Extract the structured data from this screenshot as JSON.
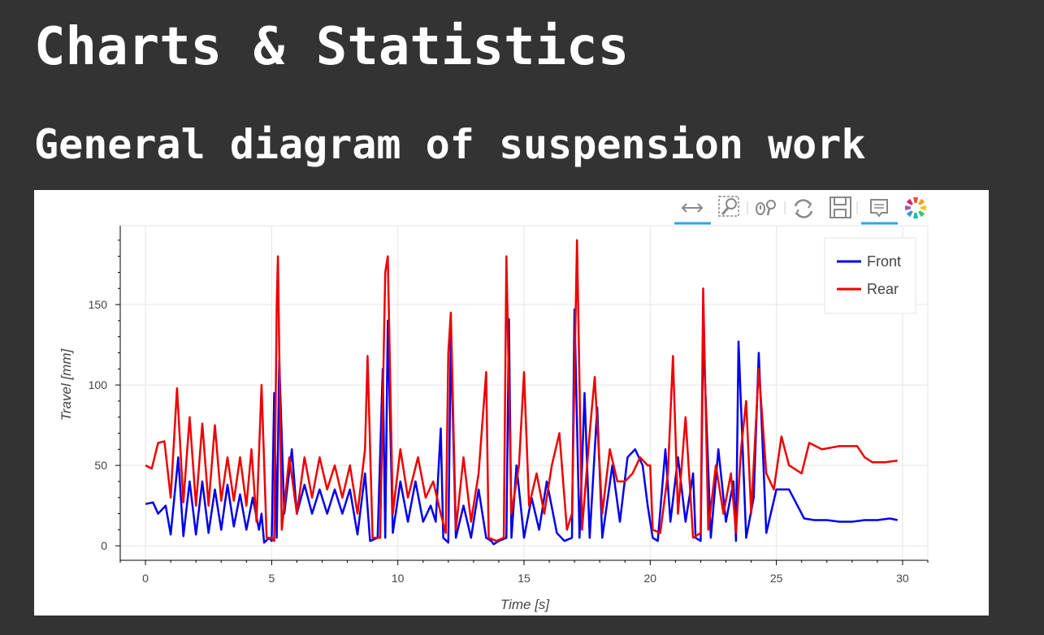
{
  "page": {
    "title": "Charts & Statistics",
    "section_title": "General diagram of suspension work"
  },
  "toolbar": {
    "tools": [
      {
        "name": "pan-tool",
        "icon": "horizontal-pan-arrows-icon",
        "active": true
      },
      {
        "name": "box-zoom-tool",
        "icon": "box-zoom-magnifier-icon",
        "active": false
      },
      {
        "name": "wheel-zoom-tool",
        "icon": "wheel-zoom-icon",
        "active": false
      },
      {
        "name": "reset-tool",
        "icon": "reset-icon",
        "active": false
      },
      {
        "name": "save-tool",
        "icon": "save-icon",
        "active": false
      },
      {
        "name": "hover-tool",
        "icon": "hover-tooltip-icon",
        "active": true
      },
      {
        "name": "bokeh-logo",
        "icon": "bokeh-logo-icon",
        "active": false
      }
    ],
    "active_color": "#26aae1"
  },
  "chart_data": {
    "type": "line",
    "xlabel": "Time [s]",
    "ylabel": "Travel [mm]",
    "xlim": [
      -1,
      31
    ],
    "ylim": [
      -9,
      199
    ],
    "xticks": [
      0,
      5,
      10,
      15,
      20,
      25,
      30
    ],
    "yticks": [
      0,
      50,
      100,
      150
    ],
    "grid": true,
    "legend_position": "top-right",
    "series": [
      {
        "name": "Front",
        "color": "#0000ee",
        "points": [
          [
            0,
            26
          ],
          [
            0.3,
            27
          ],
          [
            0.5,
            20
          ],
          [
            0.8,
            25
          ],
          [
            1.0,
            7
          ],
          [
            1.3,
            55
          ],
          [
            1.5,
            6
          ],
          [
            1.75,
            40
          ],
          [
            2.0,
            7
          ],
          [
            2.25,
            40
          ],
          [
            2.5,
            8
          ],
          [
            2.75,
            35
          ],
          [
            3.0,
            10
          ],
          [
            3.25,
            38
          ],
          [
            3.5,
            12
          ],
          [
            3.75,
            32
          ],
          [
            4.0,
            10
          ],
          [
            4.25,
            30
          ],
          [
            4.5,
            10
          ],
          [
            4.6,
            20
          ],
          [
            4.7,
            2
          ],
          [
            4.9,
            5
          ],
          [
            5.0,
            3
          ],
          [
            5.1,
            95
          ],
          [
            5.2,
            5
          ],
          [
            5.3,
            115
          ],
          [
            5.5,
            20
          ],
          [
            5.8,
            60
          ],
          [
            6.0,
            20
          ],
          [
            6.3,
            38
          ],
          [
            6.6,
            20
          ],
          [
            6.9,
            35
          ],
          [
            7.2,
            20
          ],
          [
            7.5,
            35
          ],
          [
            7.8,
            20
          ],
          [
            8.1,
            35
          ],
          [
            8.4,
            7
          ],
          [
            8.7,
            45
          ],
          [
            8.9,
            3
          ],
          [
            9.2,
            5
          ],
          [
            9.4,
            110
          ],
          [
            9.5,
            5
          ],
          [
            9.6,
            140
          ],
          [
            9.8,
            8
          ],
          [
            10.1,
            40
          ],
          [
            10.4,
            15
          ],
          [
            10.7,
            40
          ],
          [
            11.0,
            15
          ],
          [
            11.3,
            25
          ],
          [
            11.5,
            15
          ],
          [
            11.7,
            73
          ],
          [
            11.8,
            5
          ],
          [
            12.0,
            2
          ],
          [
            12.1,
            130
          ],
          [
            12.3,
            5
          ],
          [
            12.6,
            25
          ],
          [
            12.9,
            5
          ],
          [
            13.2,
            35
          ],
          [
            13.5,
            5
          ],
          [
            13.7,
            3
          ],
          [
            13.8,
            1
          ],
          [
            14.0,
            3
          ],
          [
            14.3,
            5
          ],
          [
            14.4,
            141
          ],
          [
            14.5,
            5
          ],
          [
            14.7,
            50
          ],
          [
            15.0,
            5
          ],
          [
            15.3,
            30
          ],
          [
            15.6,
            10
          ],
          [
            15.9,
            40
          ],
          [
            16.3,
            8
          ],
          [
            16.6,
            3
          ],
          [
            16.9,
            5
          ],
          [
            17.0,
            147
          ],
          [
            17.2,
            5
          ],
          [
            17.4,
            95
          ],
          [
            17.6,
            5
          ],
          [
            17.9,
            86
          ],
          [
            18.1,
            5
          ],
          [
            18.5,
            50
          ],
          [
            18.8,
            15
          ],
          [
            19.1,
            55
          ],
          [
            19.4,
            60
          ],
          [
            19.7,
            50
          ],
          [
            19.9,
            25
          ],
          [
            20.1,
            5
          ],
          [
            20.3,
            3
          ],
          [
            20.6,
            60
          ],
          [
            20.8,
            15
          ],
          [
            21.1,
            55
          ],
          [
            21.4,
            15
          ],
          [
            21.7,
            45
          ],
          [
            21.8,
            5
          ],
          [
            22.0,
            3
          ],
          [
            22.1,
            133
          ],
          [
            22.4,
            5
          ],
          [
            22.7,
            60
          ],
          [
            23.0,
            15
          ],
          [
            23.3,
            40
          ],
          [
            23.4,
            3
          ],
          [
            23.5,
            127
          ],
          [
            23.8,
            5
          ],
          [
            24.1,
            30
          ],
          [
            24.3,
            120
          ],
          [
            24.6,
            8
          ],
          [
            25.0,
            35
          ],
          [
            25.5,
            35
          ],
          [
            25.9,
            23
          ],
          [
            26.1,
            17
          ],
          [
            26.5,
            16
          ],
          [
            27.0,
            16
          ],
          [
            27.5,
            15
          ],
          [
            28.0,
            15
          ],
          [
            28.5,
            16
          ],
          [
            29.0,
            16
          ],
          [
            29.5,
            17
          ],
          [
            29.8,
            16
          ]
        ]
      },
      {
        "name": "Rear",
        "color": "#ee0000",
        "points": [
          [
            0,
            50
          ],
          [
            0.25,
            48
          ],
          [
            0.5,
            64
          ],
          [
            0.75,
            65
          ],
          [
            1.0,
            30
          ],
          [
            1.25,
            98
          ],
          [
            1.5,
            27
          ],
          [
            1.75,
            80
          ],
          [
            2.0,
            25
          ],
          [
            2.25,
            76
          ],
          [
            2.5,
            25
          ],
          [
            2.75,
            75
          ],
          [
            3.0,
            28
          ],
          [
            3.25,
            55
          ],
          [
            3.5,
            28
          ],
          [
            3.75,
            55
          ],
          [
            4.0,
            25
          ],
          [
            4.2,
            60
          ],
          [
            4.4,
            15
          ],
          [
            4.6,
            100
          ],
          [
            4.8,
            5
          ],
          [
            5.0,
            5
          ],
          [
            5.1,
            3
          ],
          [
            5.2,
            150
          ],
          [
            5.25,
            180
          ],
          [
            5.4,
            10
          ],
          [
            5.7,
            55
          ],
          [
            6.0,
            20
          ],
          [
            6.3,
            55
          ],
          [
            6.6,
            30
          ],
          [
            6.9,
            55
          ],
          [
            7.2,
            35
          ],
          [
            7.5,
            50
          ],
          [
            7.8,
            30
          ],
          [
            8.1,
            50
          ],
          [
            8.4,
            20
          ],
          [
            8.7,
            60
          ],
          [
            8.8,
            118
          ],
          [
            9.0,
            5
          ],
          [
            9.3,
            5
          ],
          [
            9.5,
            170
          ],
          [
            9.6,
            180
          ],
          [
            9.8,
            20
          ],
          [
            10.1,
            60
          ],
          [
            10.4,
            30
          ],
          [
            10.8,
            55
          ],
          [
            11.1,
            30
          ],
          [
            11.4,
            40
          ],
          [
            11.7,
            20
          ],
          [
            11.9,
            8
          ],
          [
            12.0,
            120
          ],
          [
            12.1,
            145
          ],
          [
            12.3,
            10
          ],
          [
            12.6,
            55
          ],
          [
            12.9,
            15
          ],
          [
            13.2,
            45
          ],
          [
            13.5,
            108
          ],
          [
            13.6,
            5
          ],
          [
            13.9,
            3
          ],
          [
            14.2,
            5
          ],
          [
            14.3,
            180
          ],
          [
            14.5,
            20
          ],
          [
            14.8,
            50
          ],
          [
            15.0,
            108
          ],
          [
            15.2,
            25
          ],
          [
            15.5,
            45
          ],
          [
            15.8,
            20
          ],
          [
            16.1,
            50
          ],
          [
            16.4,
            70
          ],
          [
            16.7,
            10
          ],
          [
            16.9,
            20
          ],
          [
            17.1,
            190
          ],
          [
            17.3,
            10
          ],
          [
            17.6,
            70
          ],
          [
            17.8,
            105
          ],
          [
            18.1,
            20
          ],
          [
            18.4,
            60
          ],
          [
            18.7,
            40
          ],
          [
            19.0,
            40
          ],
          [
            19.3,
            45
          ],
          [
            19.6,
            55
          ],
          [
            19.9,
            50
          ],
          [
            20.0,
            50
          ],
          [
            20.1,
            10
          ],
          [
            20.4,
            8
          ],
          [
            20.7,
            45
          ],
          [
            20.9,
            118
          ],
          [
            21.1,
            20
          ],
          [
            21.4,
            80
          ],
          [
            21.7,
            5
          ],
          [
            22.0,
            8
          ],
          [
            22.1,
            160
          ],
          [
            22.3,
            10
          ],
          [
            22.6,
            50
          ],
          [
            22.9,
            20
          ],
          [
            23.2,
            45
          ],
          [
            23.4,
            8
          ],
          [
            23.6,
            60
          ],
          [
            23.8,
            90
          ],
          [
            24.0,
            20
          ],
          [
            24.3,
            110
          ],
          [
            24.6,
            45
          ],
          [
            24.9,
            35
          ],
          [
            25.2,
            68
          ],
          [
            25.5,
            50
          ],
          [
            26.0,
            45
          ],
          [
            26.3,
            64
          ],
          [
            26.8,
            60
          ],
          [
            27.5,
            62
          ],
          [
            28.2,
            62
          ],
          [
            28.5,
            55
          ],
          [
            28.8,
            52
          ],
          [
            29.3,
            52
          ],
          [
            29.8,
            53
          ]
        ]
      }
    ]
  }
}
